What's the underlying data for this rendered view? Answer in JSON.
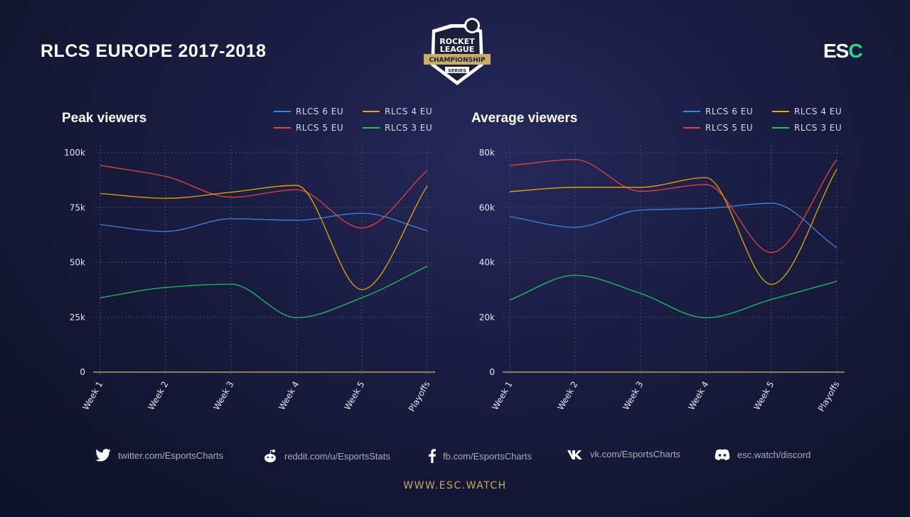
{
  "header": {
    "title": "RLCS EUROPE 2017-2018",
    "logo_text": "ROCKET LEAGUE CHAMPIONSHIP SERIES",
    "brand_left": "ES",
    "brand_right": "C"
  },
  "colors": {
    "RLCS 6 EU": "#3f82e6",
    "RLCS 5 EU": "#ea4335",
    "RLCS 4 EU": "#e8a800",
    "RLCS 3 EU": "#1fc162",
    "baseline": "#8c7d58",
    "accent": "#c9a95e"
  },
  "chart_data": [
    {
      "type": "line",
      "title": "Peak viewers",
      "categories": [
        "Week 1",
        "Week 2",
        "Week 3",
        "Week 4",
        "Week 5",
        "Playoffs"
      ],
      "ylim": [
        0,
        100000
      ],
      "yticks": [
        0,
        25000,
        50000,
        75000,
        100000
      ],
      "ytick_labels": [
        "0",
        "25k",
        "50k",
        "75k",
        "100k"
      ],
      "legend_position": "top-right",
      "grid": true,
      "series": [
        {
          "name": "RLCS 6 EU",
          "values": [
            67200,
            64100,
            69900,
            69200,
            72400,
            64500
          ]
        },
        {
          "name": "RLCS 5 EU",
          "values": [
            94200,
            89200,
            79700,
            83100,
            65700,
            91900
          ]
        },
        {
          "name": "RLCS 4 EU",
          "values": [
            81400,
            79200,
            82000,
            85100,
            37600,
            84900
          ]
        },
        {
          "name": "RLCS 3 EU",
          "values": [
            33900,
            38600,
            40100,
            24800,
            33900,
            48300
          ]
        }
      ]
    },
    {
      "type": "line",
      "title": "Average viewers",
      "categories": [
        "Week 1",
        "Week 2",
        "Week 3",
        "Week 4",
        "Week 5",
        "Playoffs"
      ],
      "ylim": [
        0,
        80000
      ],
      "yticks": [
        0,
        20000,
        40000,
        60000,
        80000
      ],
      "ytick_labels": [
        "0",
        "20k",
        "40k",
        "60k",
        "80k"
      ],
      "legend_position": "top-right",
      "grid": true,
      "series": [
        {
          "name": "RLCS 6 EU",
          "values": [
            56700,
            52800,
            59100,
            59700,
            61600,
            45300
          ]
        },
        {
          "name": "RLCS 5 EU",
          "values": [
            75300,
            77500,
            65900,
            68400,
            43600,
            77600
          ]
        },
        {
          "name": "RLCS 4 EU",
          "values": [
            65800,
            67400,
            67400,
            70900,
            32000,
            74000
          ]
        },
        {
          "name": "RLCS 3 EU",
          "values": [
            26300,
            35300,
            28700,
            19800,
            26500,
            33100
          ]
        }
      ]
    }
  ],
  "footer": {
    "links": [
      {
        "icon": "twitter-icon",
        "label": "twitter.com/EsportsCharts"
      },
      {
        "icon": "reddit-icon",
        "label": "reddit.com/u/EsportsStats"
      },
      {
        "icon": "facebook-icon",
        "label": "fb.com/EsportsCharts"
      },
      {
        "icon": "vk-icon",
        "label": "vk.com/EsportsCharts"
      },
      {
        "icon": "discord-icon",
        "label": "esc.watch/discord"
      }
    ],
    "website": "WWW.ESC.WATCH"
  }
}
